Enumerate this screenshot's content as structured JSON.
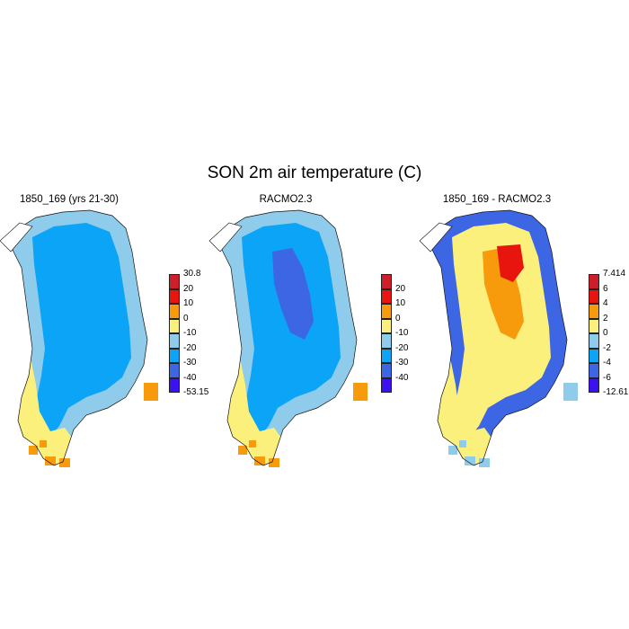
{
  "figure": {
    "title": "SON 2m air temperature (C)"
  },
  "panels": [
    {
      "title": "1850_169 (yrs 21-30)",
      "colorbar": {
        "colors": [
          "#3b11f0",
          "#3d66e4",
          "#0ba4f6",
          "#8fcbeb",
          "#fcf07c",
          "#f79a0b",
          "#e8140e",
          "#cc1f2a"
        ],
        "labels": [
          "-53.15",
          "-40",
          "-30",
          "-20",
          "-10",
          "0",
          "10",
          "20",
          "30.8"
        ],
        "end_labels": true
      },
      "fill": {
        "coast": "#8fcbeb",
        "interior": "#0ba4f6",
        "core": null,
        "south": "#fcf07c",
        "edge": "#f79a0b"
      }
    },
    {
      "title": "RACMO2.3",
      "colorbar": {
        "colors": [
          "#3b11f0",
          "#3d66e4",
          "#0ba4f6",
          "#8fcbeb",
          "#fcf07c",
          "#f79a0b",
          "#e8140e",
          "#cc1f2a"
        ],
        "labels": [
          "-40",
          "-30",
          "-20",
          "-10",
          "0",
          "10",
          "20"
        ],
        "end_labels": false
      },
      "fill": {
        "coast": "#8fcbeb",
        "interior": "#0ba4f6",
        "core": "#3d66e4",
        "south": "#fcf07c",
        "edge": "#f79a0b"
      }
    },
    {
      "title": "1850_169 - RACMO2.3",
      "colorbar": {
        "colors": [
          "#3b11f0",
          "#3d66e4",
          "#0ba4f6",
          "#8fcbeb",
          "#fcf07c",
          "#f79a0b",
          "#e8140e",
          "#cc1f2a"
        ],
        "labels": [
          "-12.61",
          "-6",
          "-4",
          "-2",
          "0",
          "2",
          "4",
          "6",
          "7.414"
        ],
        "end_labels": true
      },
      "fill": {
        "coast": "#3d66e4",
        "interior": "#fcf07c",
        "core": "#f79a0b",
        "south": "#fcf07c",
        "edge": "#8fcbeb",
        "hot": "#e8140e"
      }
    }
  ]
}
